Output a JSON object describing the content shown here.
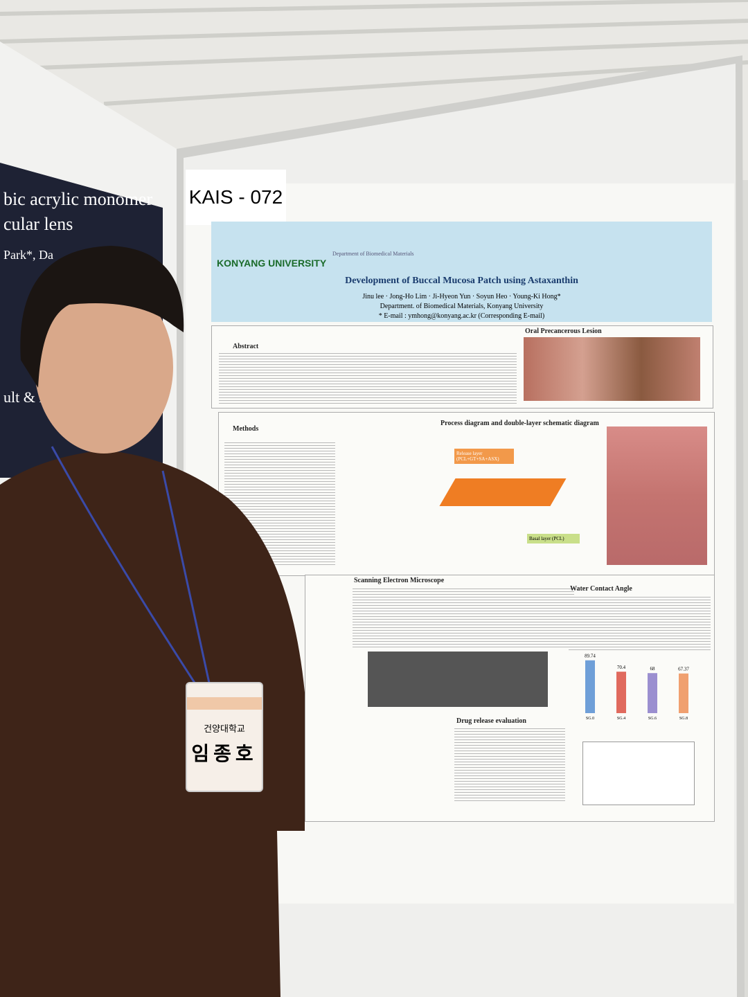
{
  "booth_number": "KAIS - 072",
  "poster": {
    "university": "KONYANG UNIVERSITY",
    "department_header": "Department of Biomedical Materials",
    "title": "Development of Buccal Mucosa Patch using Astaxanthin",
    "authors": "Jinu lee · Jong-Ho Lim · Ji-Hyeon Yun · Soyun Heo · Young-Ki Hong*",
    "affiliation": "Department. of Biomedical Materials, Konyang University",
    "email": "* E-mail : ymhong@konyang.ac.kr (Corresponding E-mail)",
    "sections": [
      "Abstract",
      "Oral Precancerous Lesion",
      "Methods",
      "Process diagram and double-layer schematic diagram",
      "Scanning Electron Microscope",
      "Water Contact Angle",
      "Drug release evaluation"
    ],
    "diagram_labels": [
      "Release layer (PCL+GT+SA+ASX)",
      "Basal layer (PCL)"
    ],
    "contact_angle": {
      "categories": [
        "SG.0",
        "SG.4",
        "SG.6",
        "SG.8"
      ],
      "values": [
        89.74,
        70.4,
        68,
        67.37
      ]
    }
  },
  "neighbor_poster": {
    "lines": [
      "bic acrylic monomer",
      "cular lens",
      "Park*, Da",
      "ult & Disc"
    ]
  },
  "badge": {
    "school": "건양대학교",
    "name": "임종호"
  }
}
